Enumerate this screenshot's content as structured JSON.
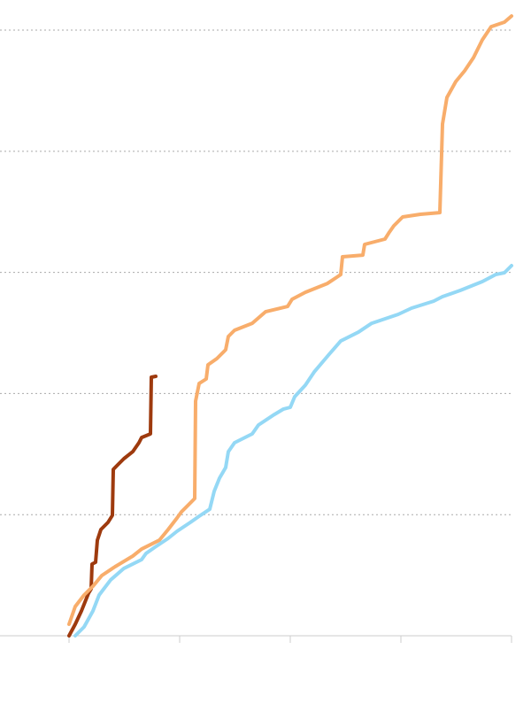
{
  "chart_data": {
    "type": "line",
    "xlim": [
      -0.624,
      4
    ],
    "xticks": [
      0,
      1,
      2,
      3,
      4
    ],
    "ylim": [
      0,
      5.249
    ],
    "yticks": [
      0,
      1,
      2,
      3,
      4,
      5
    ],
    "grid": true,
    "series": [
      {
        "color": "#9e3a0e",
        "x": [
          0,
          0.056,
          0.112,
          0.176,
          0.2,
          0.208,
          0.24,
          0.256,
          0.288,
          0.352,
          0.392,
          0.4,
          0.44,
          0.496,
          0.576,
          0.632,
          0.656,
          0.736,
          0.744,
          0.784
        ],
        "values": [
          0,
          0.095,
          0.205,
          0.351,
          0.387,
          0.592,
          0.607,
          0.789,
          0.877,
          0.936,
          0.994,
          1.374,
          1.411,
          1.462,
          1.52,
          1.594,
          1.637,
          1.667,
          2.135,
          2.142
        ]
      },
      {
        "color": "#f8ad6b",
        "x": [
          0,
          0.056,
          0.136,
          0.216,
          0.296,
          0.416,
          0.576,
          0.656,
          0.816,
          0.896,
          0.976,
          1.016,
          1.096,
          1.136,
          1.144,
          1.176,
          1.24,
          1.256,
          1.336,
          1.416,
          1.44,
          1.496,
          1.656,
          1.776,
          1.976,
          2.016,
          2.136,
          2.336,
          2.456,
          2.472,
          2.656,
          2.672,
          2.856,
          2.896,
          2.936,
          3.016,
          3.176,
          3.352,
          3.376,
          3.416,
          3.496,
          3.576,
          3.656,
          3.736,
          3.816,
          3.936,
          4
        ],
        "values": [
          0.095,
          0.241,
          0.336,
          0.409,
          0.497,
          0.57,
          0.658,
          0.716,
          0.789,
          0.877,
          0.972,
          1.023,
          1.096,
          1.133,
          1.937,
          2.083,
          2.12,
          2.237,
          2.288,
          2.361,
          2.471,
          2.522,
          2.58,
          2.675,
          2.719,
          2.778,
          2.836,
          2.909,
          2.982,
          3.129,
          3.143,
          3.231,
          3.275,
          3.333,
          3.385,
          3.458,
          3.48,
          3.494,
          4.225,
          4.444,
          4.576,
          4.664,
          4.773,
          4.92,
          5.029,
          5.066,
          5.117
        ]
      },
      {
        "color": "#94d8f5",
        "x": [
          0.056,
          0.136,
          0.216,
          0.272,
          0.376,
          0.496,
          0.656,
          0.696,
          0.776,
          0.896,
          0.976,
          1.096,
          1.176,
          1.272,
          1.312,
          1.36,
          1.416,
          1.44,
          1.496,
          1.656,
          1.712,
          1.856,
          1.936,
          2,
          2.04,
          2.136,
          2.216,
          2.352,
          2.456,
          2.616,
          2.736,
          2.976,
          3.096,
          3.296,
          3.376,
          3.536,
          3.736,
          3.856,
          3.936,
          4
        ],
        "values": [
          0,
          0.073,
          0.205,
          0.336,
          0.461,
          0.556,
          0.629,
          0.68,
          0.731,
          0.804,
          0.863,
          0.936,
          0.987,
          1.045,
          1.192,
          1.301,
          1.389,
          1.52,
          1.594,
          1.667,
          1.74,
          1.827,
          1.871,
          1.886,
          1.974,
          2.069,
          2.178,
          2.325,
          2.434,
          2.507,
          2.58,
          2.654,
          2.705,
          2.763,
          2.8,
          2.851,
          2.924,
          2.982,
          2.997,
          3.056
        ]
      }
    ]
  }
}
